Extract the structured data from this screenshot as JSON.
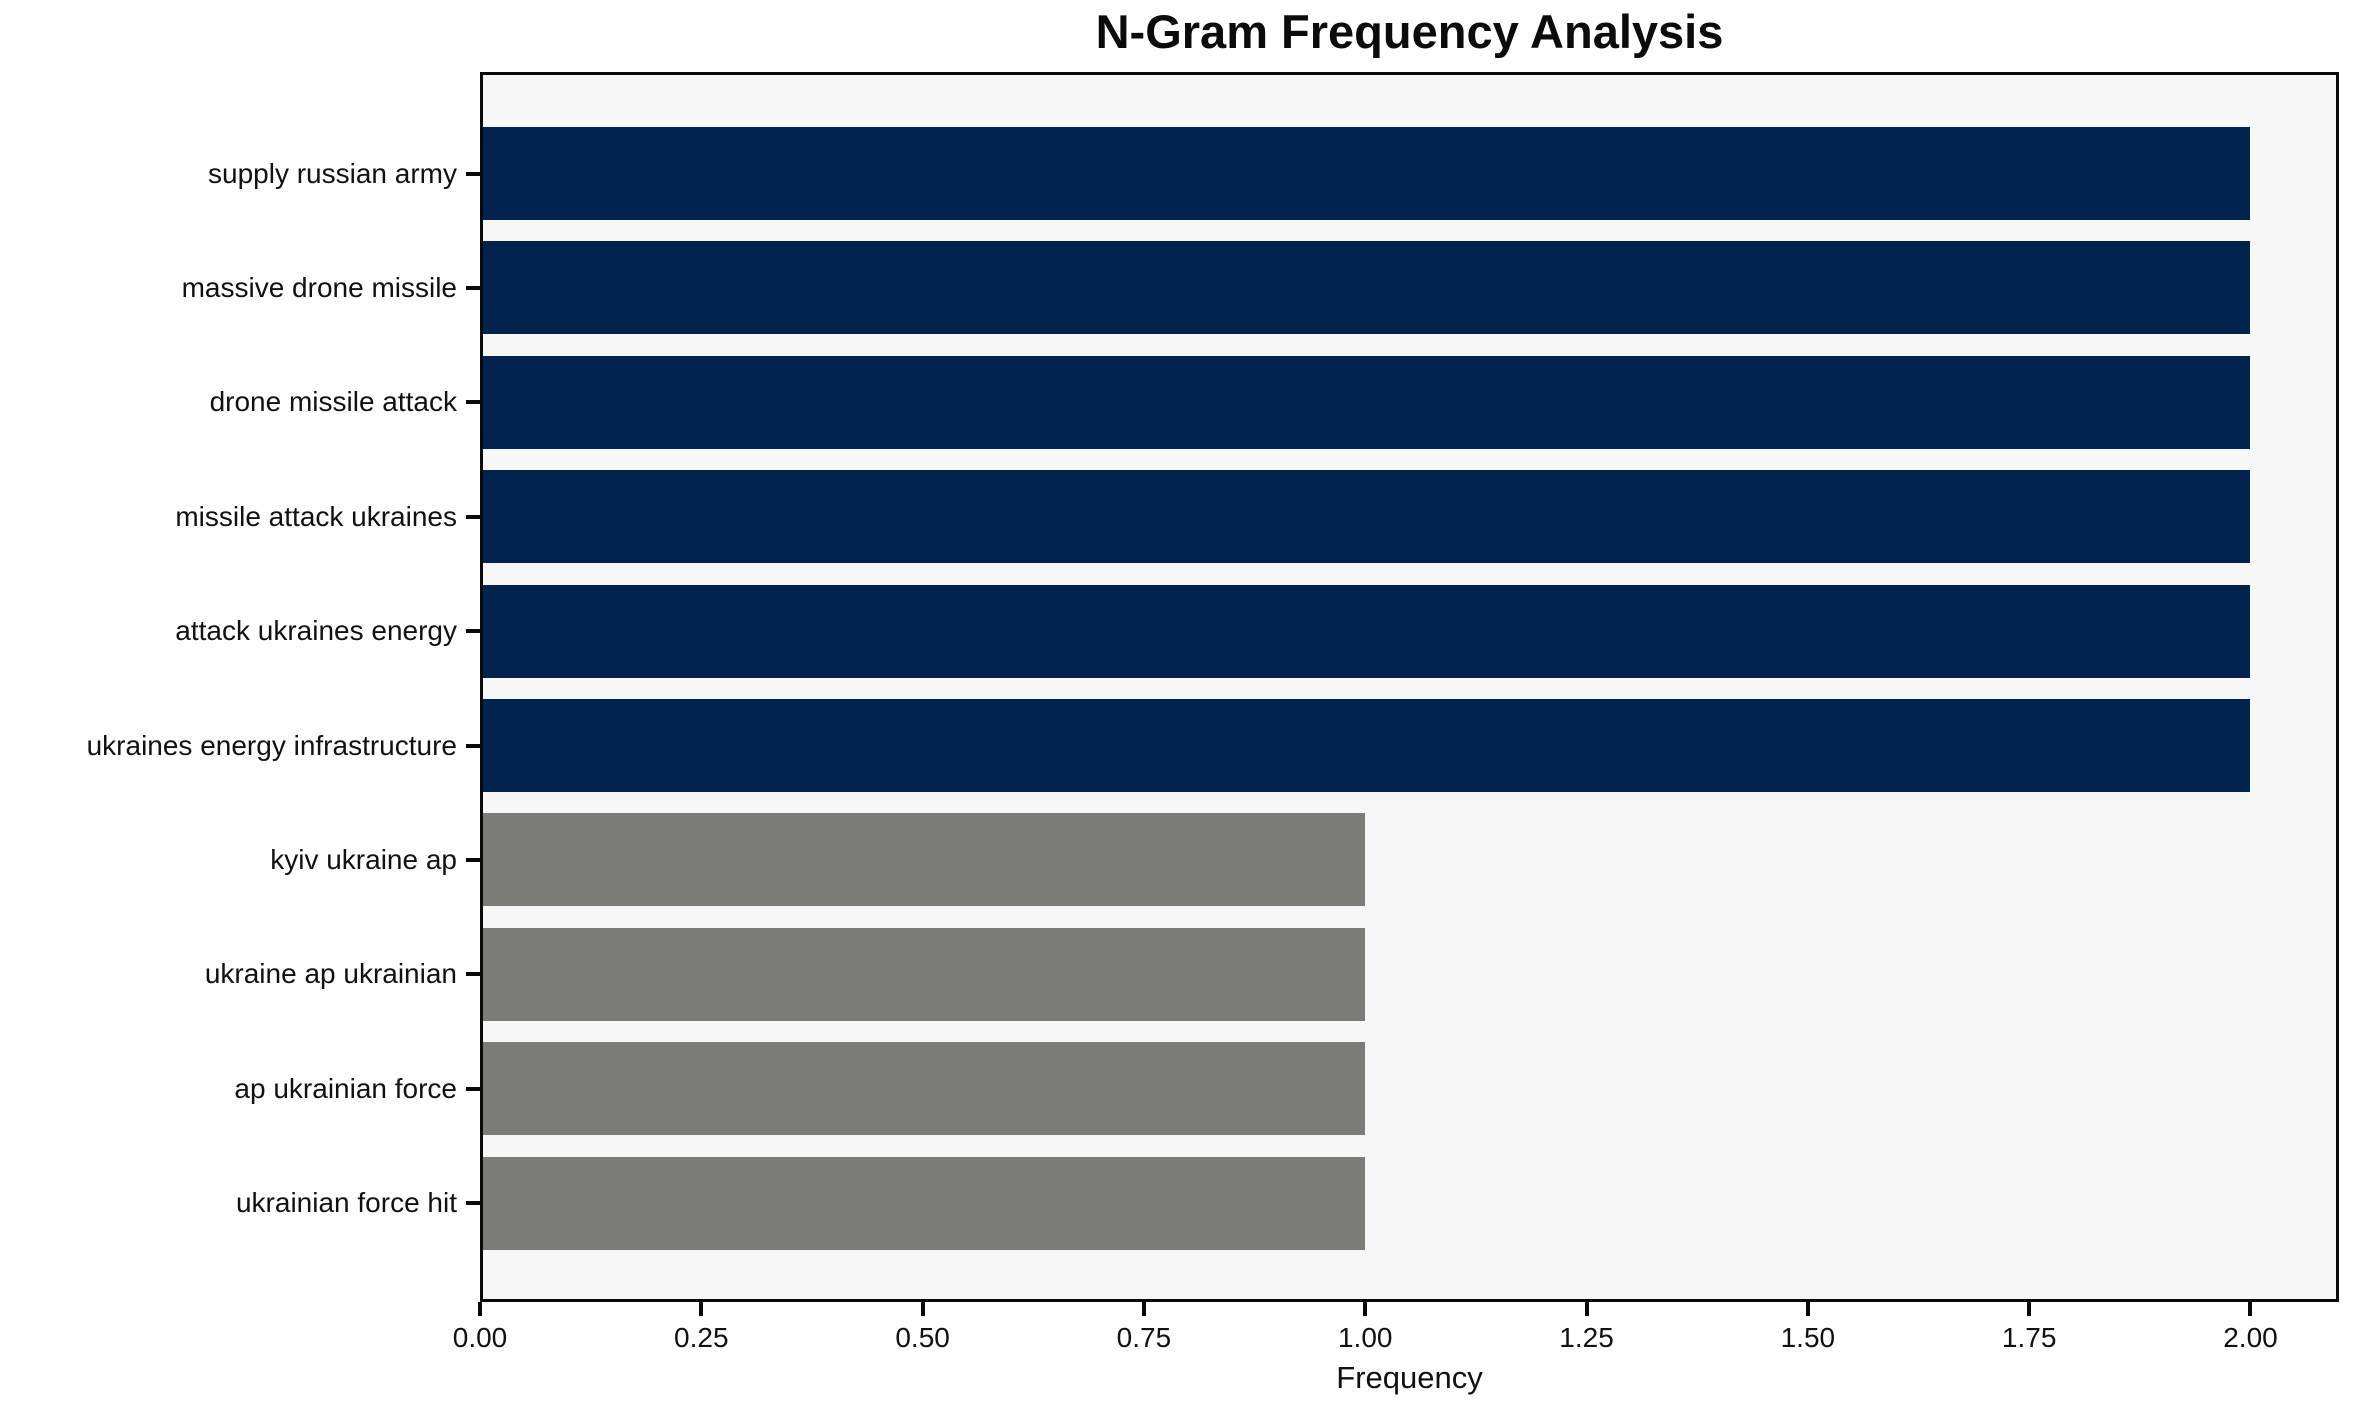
{
  "figure": {
    "title": "N-Gram Frequency Analysis",
    "xlabel": "Frequency"
  },
  "colors": {
    "bar_high": "#02234E",
    "bar_low": "#7B7B77",
    "plot_background": "#F7F7F7",
    "spine": "#0A0A0A",
    "text": "#111111"
  },
  "chart_data": {
    "type": "bar",
    "orientation": "horizontal",
    "title": "N-Gram Frequency Analysis",
    "xlabel": "Frequency",
    "ylabel": "",
    "categories": [
      "supply russian army",
      "massive drone missile",
      "drone missile attack",
      "missile attack ukraines",
      "attack ukraines energy",
      "ukraines energy infrastructure",
      "kyiv ukraine ap",
      "ukraine ap ukrainian",
      "ap ukrainian force",
      "ukrainian force hit"
    ],
    "values": [
      2,
      2,
      2,
      2,
      2,
      2,
      1,
      1,
      1,
      1
    ],
    "bar_colors": [
      "#02234E",
      "#02234E",
      "#02234E",
      "#02234E",
      "#02234E",
      "#02234E",
      "#7B7B77",
      "#7B7B77",
      "#7B7B77",
      "#7B7B77"
    ],
    "xlim": [
      0,
      2.1
    ],
    "x_tick_values": [
      0,
      0.25,
      0.5,
      0.75,
      1.0,
      1.25,
      1.5,
      1.75,
      2.0
    ],
    "x_tick_labels": [
      "0.00",
      "0.25",
      "0.50",
      "0.75",
      "1.00",
      "1.25",
      "1.50",
      "1.75",
      "2.00"
    ],
    "grid": false,
    "legend": null,
    "plot_bg": "#F7F7F7"
  }
}
